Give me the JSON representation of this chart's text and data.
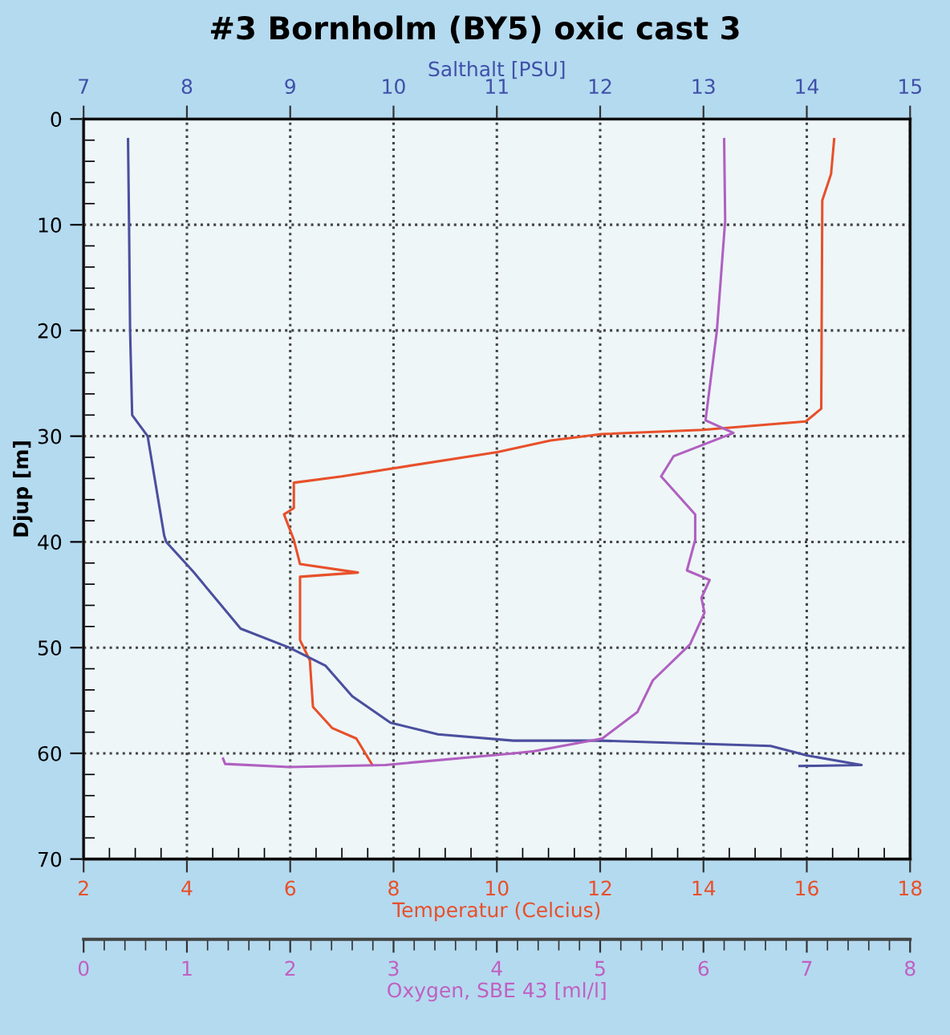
{
  "chart_data": [
    {
      "type": "line",
      "title": "#3 Bornholm (BY5) oxic cast 3",
      "xlabel": "Temperatur (Celcius)",
      "x2label": "Salthalt [PSU]",
      "ylabel": "Djup [m]",
      "xlim": [
        2,
        18
      ],
      "xticks": [
        2,
        4,
        6,
        8,
        10,
        12,
        14,
        16,
        18
      ],
      "x2lim": [
        7,
        15
      ],
      "x2ticks": [
        7,
        8,
        9,
        10,
        11,
        12,
        13,
        14,
        15
      ],
      "ylim": [
        70,
        0
      ],
      "yticks": [
        0,
        10,
        20,
        30,
        40,
        50,
        60,
        70
      ],
      "grid": true,
      "line_style": "solid",
      "marker": "none",
      "series": [
        {
          "axis": "x2",
          "color": "#4b4f9e",
          "x": [
            7.43,
            7.44,
            7.45,
            7.47,
            7.62,
            7.78,
            7.8,
            8.06,
            8.52,
            8.99,
            9.34,
            9.6,
            9.97,
            10.43,
            11.16,
            12.0,
            13.65,
            14.0,
            14.53,
            13.93
          ],
          "values": [
            1.9,
            10,
            20,
            28,
            30,
            39.4,
            40,
            42.8,
            48.2,
            50,
            51.7,
            54.6,
            57.1,
            58.2,
            58.8,
            58.8,
            59.3,
            60.2,
            61.1,
            61.2
          ]
        },
        {
          "color": "#e8502a",
          "x": [
            16.53,
            16.47,
            16.3,
            16.28,
            15.98,
            13.99,
            12.03,
            11.04,
            10.01,
            7.0,
            6.07,
            6.07,
            5.88,
            6.07,
            6.19,
            7.31,
            6.19,
            6.19,
            6.38,
            6.44,
            6.81,
            7.28,
            7.59
          ],
          "values": [
            1.9,
            5.2,
            7.7,
            27.4,
            28.6,
            29.4,
            29.8,
            30.4,
            31.5,
            33.8,
            34.4,
            36.8,
            37.4,
            39.8,
            42.1,
            42.9,
            43.3,
            49.3,
            51.2,
            55.6,
            57.6,
            58.6,
            61.1
          ]
        }
      ]
    },
    {
      "type": "line",
      "xlabel": "Oxygen, SBE 43 [ml/l]",
      "xlim": [
        0,
        8
      ],
      "xticks": [
        0,
        1,
        2,
        3,
        4,
        5,
        6,
        7,
        8
      ],
      "ylim": [
        70,
        0
      ],
      "tick_labels": "x",
      "line_style": "solid",
      "marker": "none",
      "series": [
        {
          "color": "#b060c0",
          "x": [
            6.2,
            6.21,
            6.13,
            6.02,
            6.29,
            5.71,
            5.59,
            5.92,
            5.92,
            5.84,
            6.06,
            5.98,
            6.01,
            5.87,
            5.51,
            5.36,
            5.02,
            4.36,
            4.16,
            2.92,
            1.99,
            1.37,
            1.35
          ],
          "values": [
            1.9,
            9.6,
            20,
            28.5,
            29.7,
            31.9,
            33.8,
            37.4,
            39.8,
            42.7,
            43.6,
            45.3,
            46.7,
            49.7,
            53.1,
            56.1,
            58.6,
            59.8,
            60,
            61.1,
            61.3,
            61,
            60.5
          ]
        }
      ]
    }
  ]
}
